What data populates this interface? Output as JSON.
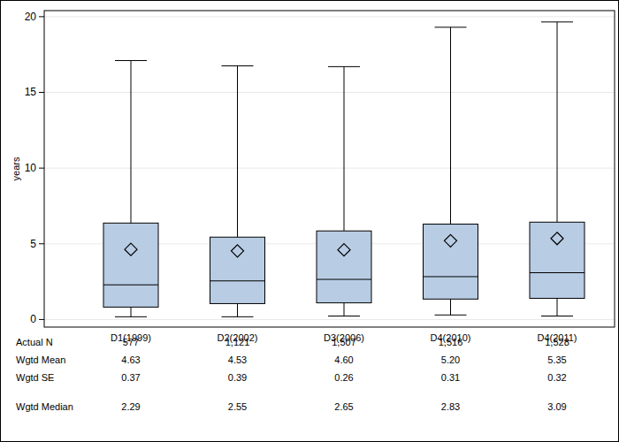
{
  "chart_data": {
    "type": "box",
    "y_label": "years",
    "categories": [
      "D1(1999)",
      "D2(2002)",
      "D3(2006)",
      "D4(2010)",
      "D4(2011)"
    ],
    "ylim": [
      -0.5,
      20.4
    ],
    "yticks": [
      0,
      5,
      10,
      15,
      20
    ],
    "grid": true,
    "color": "#b8cce4",
    "whisker_low": [
      0.18,
      0.18,
      0.23,
      0.3,
      0.23
    ],
    "q1": [
      0.82,
      1.05,
      1.1,
      1.35,
      1.4
    ],
    "q3": [
      6.37,
      5.44,
      5.85,
      6.3,
      6.43
    ],
    "whisker_high": [
      17.1,
      16.75,
      16.7,
      19.3,
      19.65
    ],
    "table": [
      {
        "label": "Actual N",
        "values": [
          577,
          1121,
          1507,
          1516,
          1528
        ],
        "value_labels": [
          "577",
          "1,121",
          "1,507",
          "1,516",
          "1,528"
        ]
      },
      {
        "label": "Wgtd Mean",
        "values": [
          4.63,
          4.53,
          4.6,
          5.2,
          5.35
        ],
        "value_labels": [
          "4.63",
          "4.53",
          "4.60",
          "5.20",
          "5.35"
        ]
      },
      {
        "label": "Wgtd SE",
        "values": [
          0.37,
          0.39,
          0.26,
          0.31,
          0.32
        ],
        "value_labels": [
          "0.37",
          "0.39",
          "0.26",
          "0.31",
          "0.32"
        ]
      },
      {
        "label": "Wgtd Median",
        "values": [
          2.29,
          2.55,
          2.65,
          2.83,
          3.09
        ],
        "value_labels": [
          "2.29",
          "2.55",
          "2.65",
          "2.83",
          "3.09"
        ]
      }
    ]
  }
}
